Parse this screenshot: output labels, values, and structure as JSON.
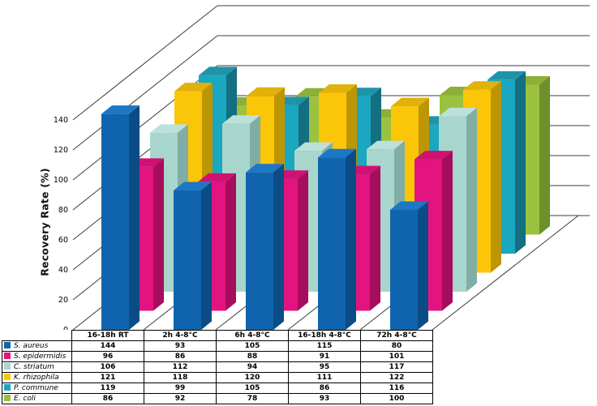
{
  "chart_data": {
    "type": "bar",
    "projection": "3d-column",
    "title": "",
    "xlabel": "",
    "ylabel": "Recovery Rate (%)",
    "ylim": [
      0,
      140
    ],
    "yticks": [
      0,
      20,
      40,
      60,
      80,
      100,
      120,
      140
    ],
    "grid": true,
    "legend_position": "table-left",
    "categories": [
      "16-18h RT",
      "2h 4-8°C",
      "6h 4-8°C",
      "16-18h 4-8°C",
      "72h 4-8°C"
    ],
    "series": [
      {
        "name": "S. aureus",
        "color": "#0F64AD",
        "top_color": "#1C77C5",
        "side_color": "#0B4B86",
        "values": [
          144,
          93,
          105,
          115,
          80
        ]
      },
      {
        "name": "S. epidermidis",
        "color": "#E31380",
        "top_color": "#D01173",
        "side_color": "#A60D5C",
        "values": [
          96,
          86,
          88,
          91,
          101
        ]
      },
      {
        "name": "C. striatum",
        "color": "#A8D6CD",
        "top_color": "#BCE0DA",
        "side_color": "#80AEA5",
        "values": [
          106,
          112,
          94,
          95,
          117
        ]
      },
      {
        "name": "K. rhizophila",
        "color": "#FCC608",
        "top_color": "#E2B10C",
        "side_color": "#BE9503",
        "values": [
          121,
          118,
          120,
          111,
          122
        ]
      },
      {
        "name": "P. commune",
        "color": "#1AA7BF",
        "top_color": "#1F93A8",
        "side_color": "#136F81",
        "values": [
          119,
          99,
          105,
          86,
          116
        ]
      },
      {
        "name": "E. coli",
        "color": "#9AC23F",
        "top_color": "#8CAF36",
        "side_color": "#6F8F2A",
        "values": [
          86,
          92,
          78,
          93,
          100
        ]
      }
    ],
    "colors": {
      "grid_line": "#3C3C3C",
      "tick_text": "#000000",
      "background": "#FFFFFF"
    }
  }
}
